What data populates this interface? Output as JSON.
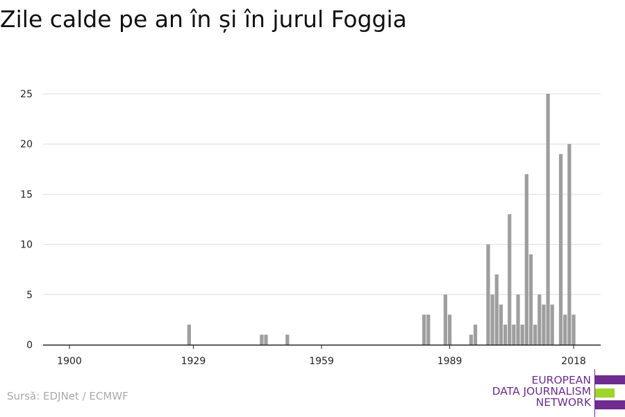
{
  "title": "Zile calde pe an în și în jurul Foggia",
  "source": "Sursă: EDJNet / ECMWF",
  "logo": {
    "lines": [
      "EUROPEAN",
      "DATA JOURNALISM",
      "NETWORK"
    ],
    "colors": {
      "purple": "#6d2c8e",
      "green": "#9ed52a"
    }
  },
  "colors": {
    "bar": "#9e9e9e",
    "grid": "#dddddd",
    "axis": "#222222",
    "title": "#111111",
    "source": "#a9a9a9"
  },
  "chart_data": {
    "type": "bar",
    "title": "Zile calde pe an în și în jurul Foggia",
    "xlabel": "",
    "ylabel": "",
    "ylim": [
      0,
      26.5
    ],
    "xlim": [
      1900,
      2019
    ],
    "x_ticks": [
      1900,
      1929,
      1959,
      1989,
      2018
    ],
    "y_ticks": [
      0,
      5,
      10,
      15,
      20,
      25
    ],
    "grid": true,
    "x": [
      1928,
      1945,
      1946,
      1951,
      1983,
      1984,
      1988,
      1989,
      1994,
      1995,
      1998,
      1999,
      2000,
      2001,
      2002,
      2003,
      2004,
      2005,
      2006,
      2007,
      2008,
      2009,
      2010,
      2011,
      2012,
      2013,
      2014,
      2015,
      2016,
      2017,
      2018
    ],
    "values": [
      2,
      1,
      1,
      1,
      3,
      3,
      5,
      3,
      1,
      2,
      10,
      5,
      7,
      4,
      2,
      13,
      2,
      5,
      2,
      17,
      9,
      2,
      5,
      4,
      25,
      4,
      0,
      19,
      3,
      20,
      3
    ]
  }
}
